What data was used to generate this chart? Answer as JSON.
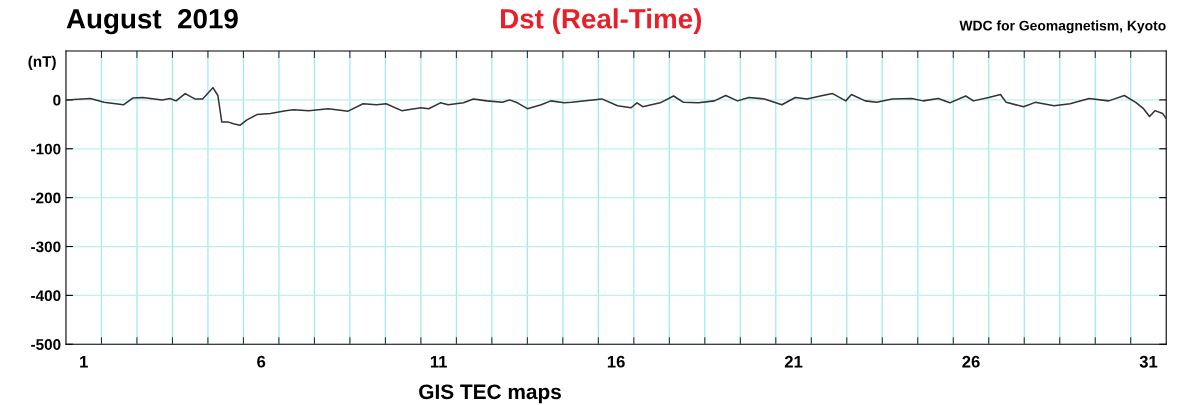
{
  "chart_data": {
    "type": "line",
    "title": "Dst (Real-Time)",
    "subtitle": "August  2019",
    "ylabel": "(nT)",
    "annotations": [
      "WDC for Geomagnetism, Kyoto",
      "GIS TEC maps"
    ],
    "xlim": [
      1,
      32
    ],
    "ylim": [
      -500,
      100
    ],
    "xticks": [
      {
        "value": 1.5,
        "label": "1"
      },
      {
        "value": 6.5,
        "label": "6"
      },
      {
        "value": 11.5,
        "label": "11"
      },
      {
        "value": 16.5,
        "label": "16"
      },
      {
        "value": 21.5,
        "label": "21"
      },
      {
        "value": 26.5,
        "label": "26"
      },
      {
        "value": 31.5,
        "label": "31"
      },
      {
        "value": 2,
        "label": null
      },
      {
        "value": 3,
        "label": null
      },
      {
        "value": 4,
        "label": null
      },
      {
        "value": 5,
        "label": null
      },
      {
        "value": 6,
        "label": null
      },
      {
        "value": 7,
        "label": null
      },
      {
        "value": 8,
        "label": null
      },
      {
        "value": 9,
        "label": null
      },
      {
        "value": 10,
        "label": null
      },
      {
        "value": 11,
        "label": null
      },
      {
        "value": 12,
        "label": null
      },
      {
        "value": 13,
        "label": null
      },
      {
        "value": 14,
        "label": null
      },
      {
        "value": 15,
        "label": null
      },
      {
        "value": 16,
        "label": null
      },
      {
        "value": 17,
        "label": null
      },
      {
        "value": 18,
        "label": null
      },
      {
        "value": 19,
        "label": null
      },
      {
        "value": 20,
        "label": null
      },
      {
        "value": 21,
        "label": null
      },
      {
        "value": 22,
        "label": null
      },
      {
        "value": 23,
        "label": null
      },
      {
        "value": 24,
        "label": null
      },
      {
        "value": 25,
        "label": null
      },
      {
        "value": 26,
        "label": null
      },
      {
        "value": 27,
        "label": null
      },
      {
        "value": 28,
        "label": null
      },
      {
        "value": 29,
        "label": null
      },
      {
        "value": 30,
        "label": null
      },
      {
        "value": 31,
        "label": null
      }
    ],
    "yticks": [
      0,
      -100,
      -200,
      -300,
      -400,
      -500
    ],
    "grid": true,
    "marker": "none",
    "line_style": "solid",
    "series": [
      {
        "color": "#333333",
        "x": [
          1.0,
          1.69,
          2.07,
          2.62,
          2.89,
          3.16,
          3.71,
          3.93,
          4.1,
          4.36,
          4.63,
          4.85,
          5.14,
          5.28,
          5.39,
          5.56,
          5.72,
          5.9,
          6.1,
          6.38,
          6.76,
          7.19,
          7.41,
          7.84,
          8.39,
          8.95,
          9.37,
          9.75,
          10.02,
          10.46,
          11.0,
          11.22,
          11.55,
          11.77,
          12.2,
          12.48,
          12.86,
          13.3,
          13.5,
          13.72,
          14.0,
          14.39,
          14.66,
          15.04,
          15.25,
          15.7,
          16.1,
          16.54,
          16.92,
          17.09,
          17.25,
          17.74,
          18.12,
          18.4,
          18.82,
          19.27,
          19.59,
          19.92,
          20.24,
          20.68,
          21.17,
          21.55,
          21.88,
          22.32,
          22.6,
          22.97,
          23.13,
          23.52,
          23.84,
          24.28,
          24.83,
          25.15,
          25.58,
          25.9,
          26.35,
          26.57,
          27.0,
          27.33,
          27.49,
          27.98,
          28.31,
          28.84,
          29.29,
          29.83,
          30.38,
          30.82,
          31.14,
          31.36,
          31.53,
          31.68,
          31.9,
          32.0
        ],
        "values": [
          0,
          3,
          -5,
          -10,
          4,
          5,
          0,
          3,
          -2,
          13,
          2,
          2,
          25,
          9,
          -45,
          -45,
          -49,
          -52,
          -41,
          -30,
          -28,
          -22,
          -20,
          -22,
          -18,
          -23,
          -8,
          -10,
          -8,
          -22,
          -16,
          -18,
          -6,
          -10,
          -6,
          2,
          -2,
          -5,
          0,
          -6,
          -18,
          -10,
          -2,
          -6,
          -5,
          -1,
          2,
          -12,
          -16,
          -6,
          -14,
          -6,
          8,
          -5,
          -6,
          -2,
          9,
          -2,
          5,
          2,
          -10,
          5,
          2,
          9,
          13,
          -2,
          11,
          -2,
          -5,
          2,
          3,
          -2,
          3,
          -6,
          8,
          -2,
          5,
          11,
          -5,
          -14,
          -5,
          -12,
          -8,
          3,
          -2,
          9,
          -5,
          -18,
          -34,
          -22,
          -28,
          -38
        ]
      }
    ]
  }
}
